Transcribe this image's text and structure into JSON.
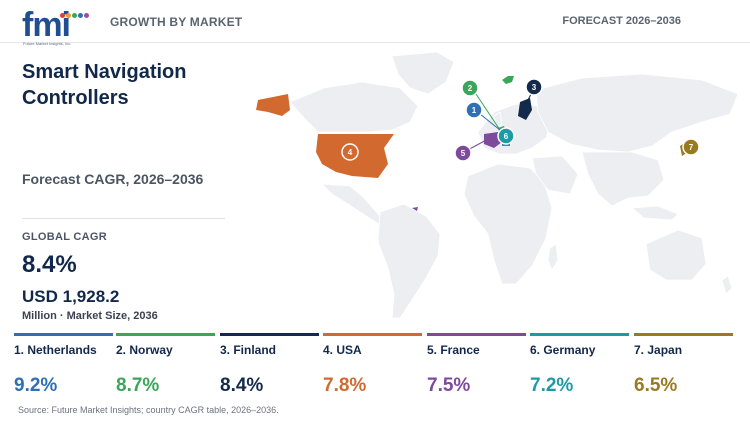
{
  "header": {
    "logo_text": "fmi",
    "logo_tagline": "Future Market Insights, Inc.",
    "left_label": "GROWTH BY MARKET",
    "right_label": "FORECAST 2026–2036"
  },
  "summary": {
    "title": "Smart Navigation Controllers",
    "cagr_label": "Forecast CAGR, 2026–2036",
    "global_cagr_label": "GLOBAL CAGR",
    "global_cagr_value": "8.4%",
    "market_size_value": "USD 1,928.2",
    "market_size_label": "Million · Market Size, 2036"
  },
  "countries": [
    {
      "rank": "1",
      "name": "1. Netherlands",
      "cagr": "9.2%",
      "color": "#2f6fb3"
    },
    {
      "rank": "2",
      "name": "2. Norway",
      "cagr": "8.7%",
      "color": "#3aa65a"
    },
    {
      "rank": "3",
      "name": "3. Finland",
      "cagr": "8.4%",
      "color": "#132a4a"
    },
    {
      "rank": "4",
      "name": "4. USA",
      "cagr": "7.8%",
      "color": "#d2692f"
    },
    {
      "rank": "5",
      "name": "5. France",
      "cagr": "7.5%",
      "color": "#7d4a9c"
    },
    {
      "rank": "6",
      "name": "6. Germany",
      "cagr": "7.2%",
      "color": "#1e9aa6"
    },
    {
      "rank": "7",
      "name": "7. Japan",
      "cagr": "6.5%",
      "color": "#9a7a1e"
    }
  ],
  "source": "Source: Future Market Insights; country CAGR table, 2026–2036.",
  "colors": {
    "map_land": "#eceef1",
    "map_border": "#ffffff",
    "logo_dots": [
      "#e23c3c",
      "#f29c1f",
      "#3aa65a",
      "#2f6fb3",
      "#9a4ca6"
    ]
  }
}
